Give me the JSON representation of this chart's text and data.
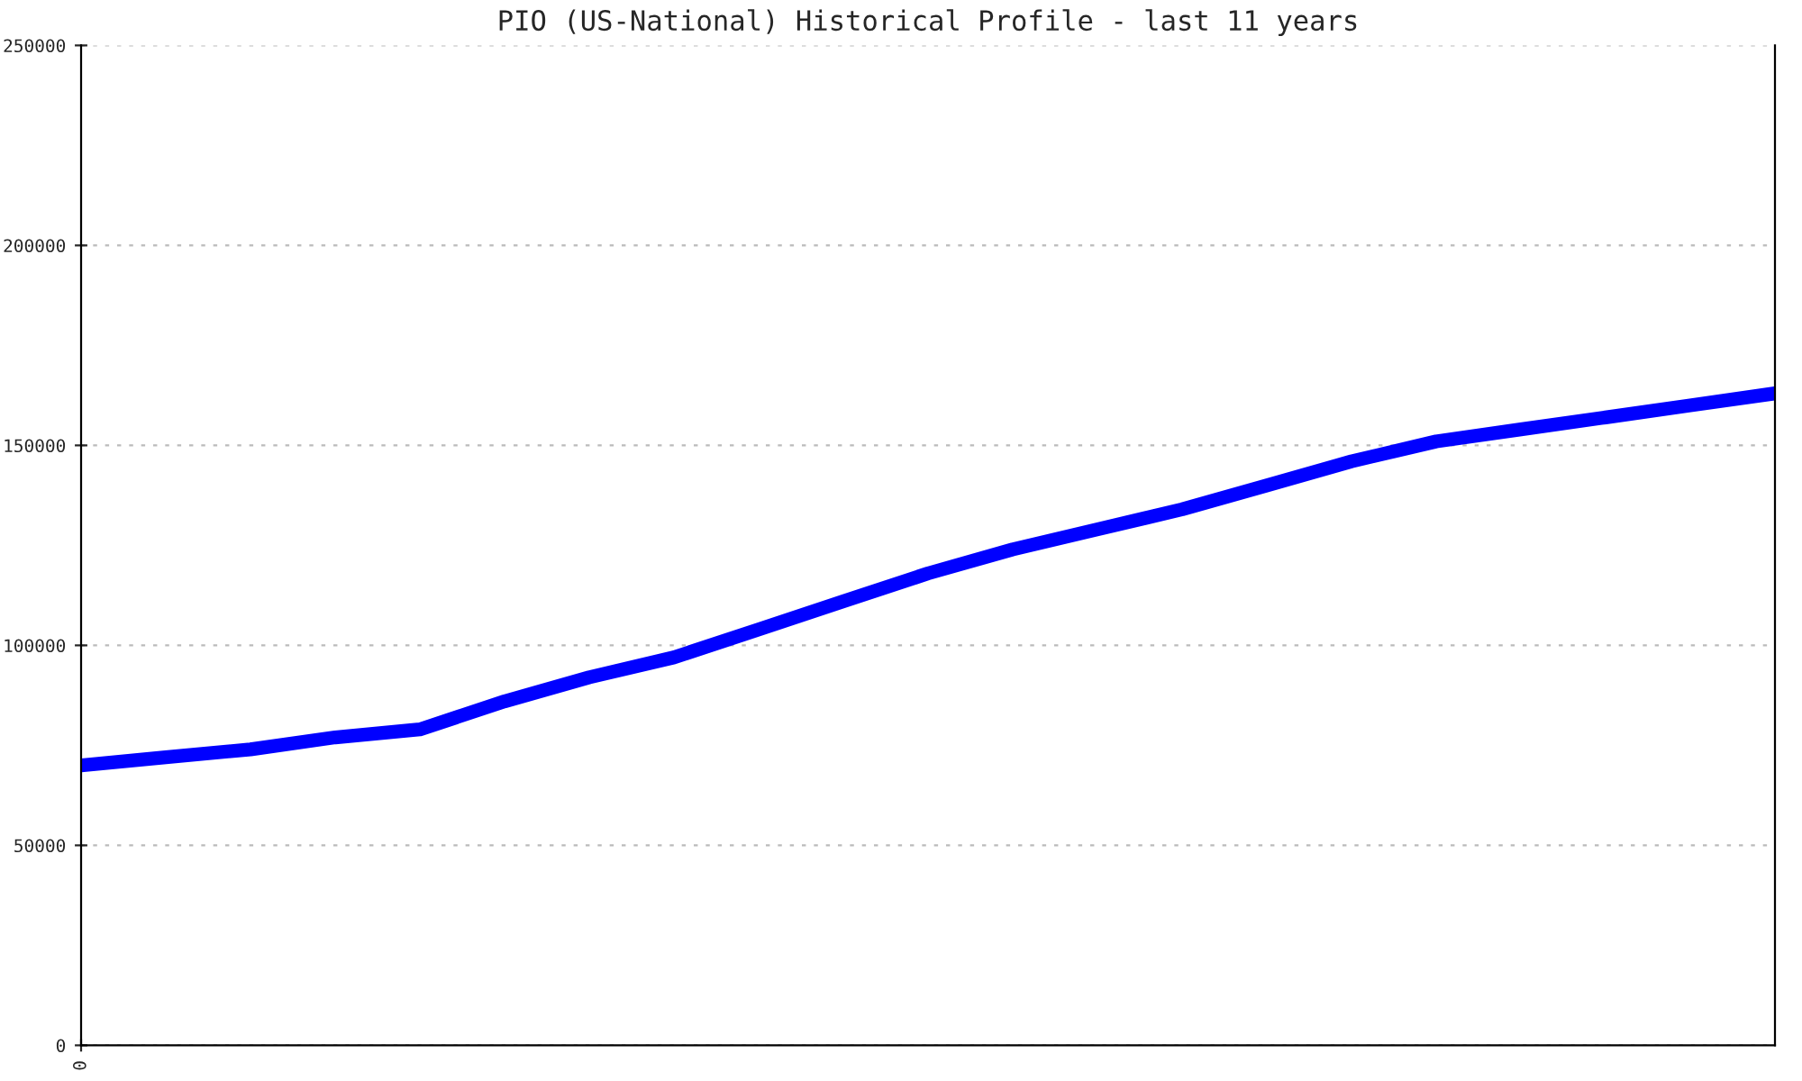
{
  "chart_data": {
    "type": "line",
    "title": "PIO (US-National) Historical Profile - last 11 years",
    "categories": [
      "0",
      null,
      null,
      null,
      null,
      null,
      null,
      null,
      null,
      null,
      null,
      null,
      null,
      null,
      null,
      null,
      null,
      null,
      null,
      null,
      null
    ],
    "series": [
      {
        "color": "#0000ff",
        "values": [
          70000,
          72000,
          74000,
          77000,
          79000,
          86000,
          92000,
          97000,
          104000,
          111000,
          118000,
          124000,
          129000,
          134000,
          140000,
          146000,
          151000,
          154000,
          157000,
          160000,
          163000
        ]
      }
    ],
    "ylim": [
      0,
      250000
    ],
    "yticks": [
      0,
      50000,
      100000,
      150000,
      200000,
      250000
    ],
    "grid": "y",
    "marker": "none",
    "line_style": "solid"
  }
}
